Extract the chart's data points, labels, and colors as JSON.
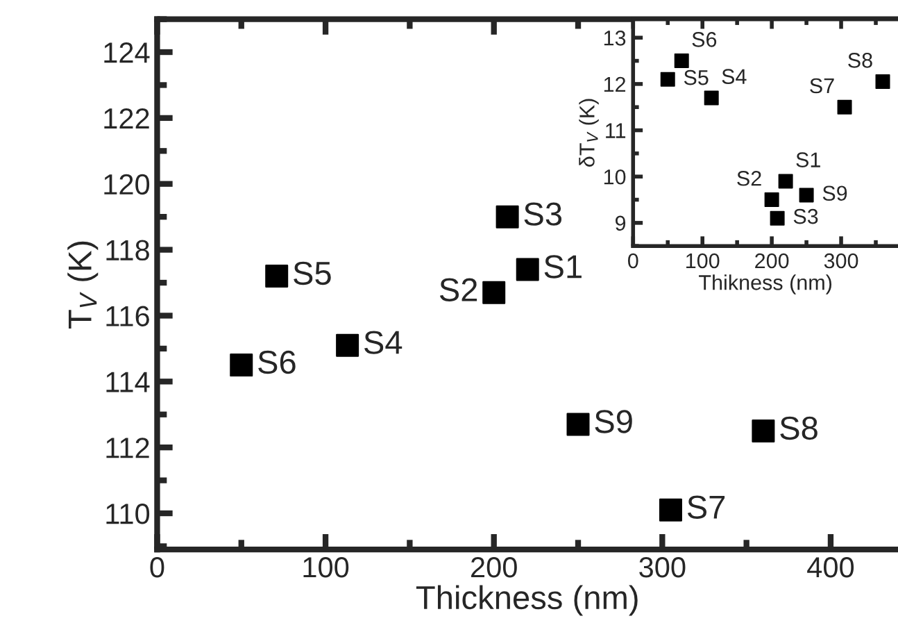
{
  "chart_data": [
    {
      "type": "scatter",
      "xlabel": "Thickness (nm)",
      "ylabel": "T$_{V}$ (K)",
      "xlim": [
        0,
        440
      ],
      "ylim": [
        108.9,
        125
      ],
      "xticks": [
        0,
        100,
        200,
        300,
        400
      ],
      "yticks": [
        110,
        112,
        114,
        116,
        118,
        120,
        122,
        124
      ],
      "marker": "square",
      "grid": false,
      "legend": false,
      "series": [
        {
          "color": "#000000",
          "x": [
            220,
            200,
            208,
            113,
            71,
            50,
            305,
            360,
            250
          ],
          "values": [
            117.4,
            116.7,
            119.0,
            115.1,
            117.2,
            114.5,
            110.1,
            112.5,
            112.7
          ],
          "value_labels": [
            "S1",
            "S2",
            "S3",
            "S4",
            "S5",
            "S6",
            "S7",
            "S8",
            "S9"
          ]
        }
      ]
    },
    {
      "type": "scatter",
      "xlabel": "Thikness (nm)",
      "ylabel": "δT$_{V}$ (K)",
      "xlim": [
        0,
        382
      ],
      "ylim": [
        8.5,
        13.4
      ],
      "xticks": [
        0,
        100,
        200,
        300
      ],
      "yticks": [
        9,
        10,
        11,
        12,
        13
      ],
      "marker": "square",
      "grid": false,
      "legend": false,
      "series": [
        {
          "color": "#000000",
          "x": [
            220,
            200,
            208,
            113,
            50,
            70,
            305,
            360,
            250
          ],
          "values": [
            9.9,
            9.5,
            9.1,
            11.7,
            12.1,
            12.5,
            11.5,
            12.05,
            9.6
          ],
          "value_labels": [
            "S1",
            "S2",
            "S3",
            "S4",
            "S5",
            "S6",
            "S7",
            "S8",
            "S9"
          ]
        }
      ]
    }
  ]
}
